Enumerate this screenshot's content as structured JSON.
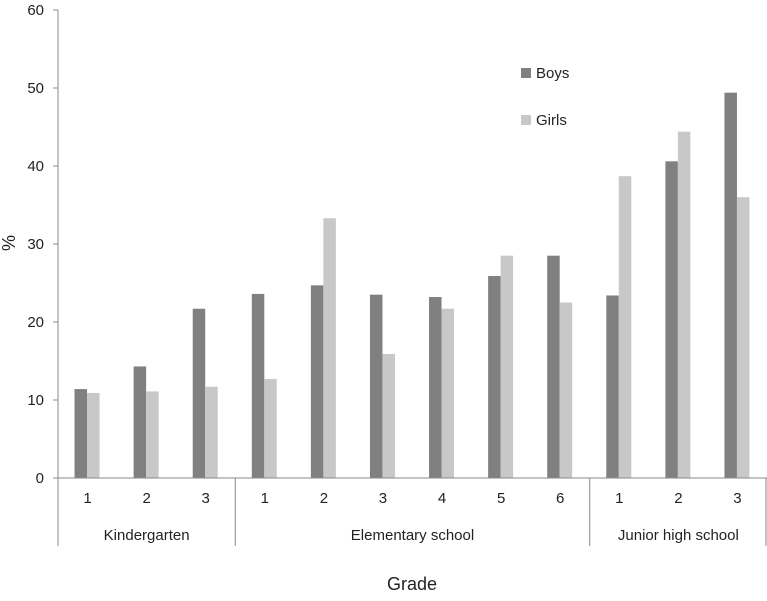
{
  "chart_data": {
    "type": "bar",
    "xlabel": "Grade",
    "ylabel": "%",
    "ylim": [
      0,
      60
    ],
    "yticks": [
      "0",
      "10",
      "20",
      "30",
      "40",
      "50",
      "60"
    ],
    "categories": [
      "1",
      "2",
      "3",
      "1",
      "2",
      "3",
      "4",
      "5",
      "6",
      "1",
      "2",
      "3"
    ],
    "groups": [
      {
        "label": "Kindergarten",
        "count": 3
      },
      {
        "label": "Elementary school",
        "count": 6
      },
      {
        "label": "Junior high school",
        "count": 3
      }
    ],
    "series": [
      {
        "name": "Boys",
        "color": "#808080",
        "values": [
          11.4,
          14.3,
          21.7,
          23.6,
          24.7,
          23.5,
          23.2,
          25.9,
          28.5,
          23.4,
          40.6,
          49.4
        ]
      },
      {
        "name": "Girls",
        "color": "#c8c8c8",
        "values": [
          10.9,
          11.1,
          11.7,
          12.7,
          33.3,
          15.9,
          21.7,
          28.5,
          22.5,
          38.7,
          44.4,
          36.0
        ]
      }
    ],
    "legend_position": "top-right",
    "grid": false
  }
}
